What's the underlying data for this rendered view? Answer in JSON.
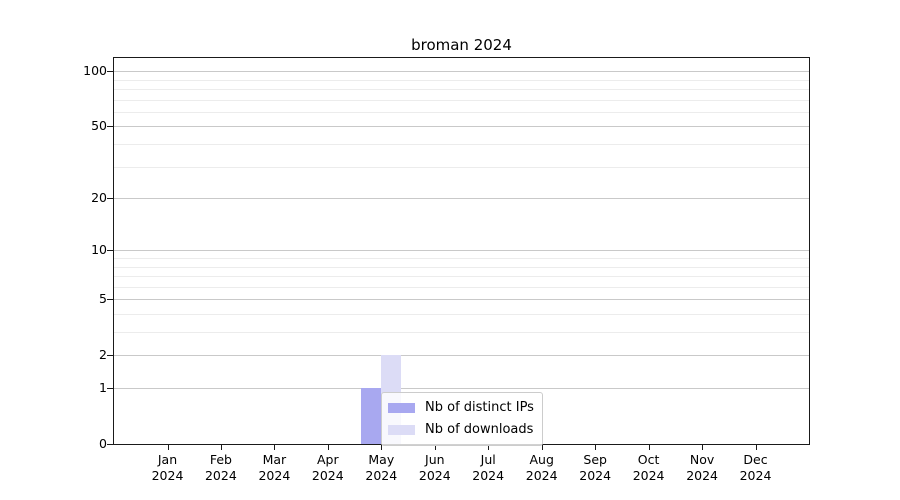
{
  "chart_data": {
    "type": "bar",
    "title": "broman 2024",
    "x": {
      "months": [
        "Jan",
        "Feb",
        "Mar",
        "Apr",
        "May",
        "Jun",
        "Jul",
        "Aug",
        "Sep",
        "Oct",
        "Nov",
        "Dec"
      ],
      "year": "2024"
    },
    "series": [
      {
        "name": "Nb of distinct IPs",
        "color": "#a8a8f0",
        "values": [
          0,
          0,
          0,
          0,
          1,
          0,
          0,
          0,
          0,
          0,
          0,
          0
        ]
      },
      {
        "name": "Nb of downloads",
        "color": "#dcdcf6",
        "values": [
          0,
          0,
          0,
          0,
          2,
          0,
          0,
          0,
          0,
          0,
          0,
          0
        ]
      }
    ],
    "y_axis": {
      "scale": "log1p",
      "ylim": [
        0,
        118
      ],
      "major_ticks": [
        0,
        1,
        2,
        5,
        10,
        20,
        50,
        100
      ],
      "minor_ticks": [
        3,
        4,
        6,
        7,
        8,
        9,
        30,
        40,
        60,
        70,
        80,
        90
      ]
    },
    "legend": {
      "position": "inside-bottom-center"
    },
    "colors": {
      "major_grid": "#c9c9c9",
      "minor_grid": "#ececec",
      "axis_frame": "#1a1a1a",
      "legend_border": "#cccccc"
    },
    "grid": "on"
  }
}
